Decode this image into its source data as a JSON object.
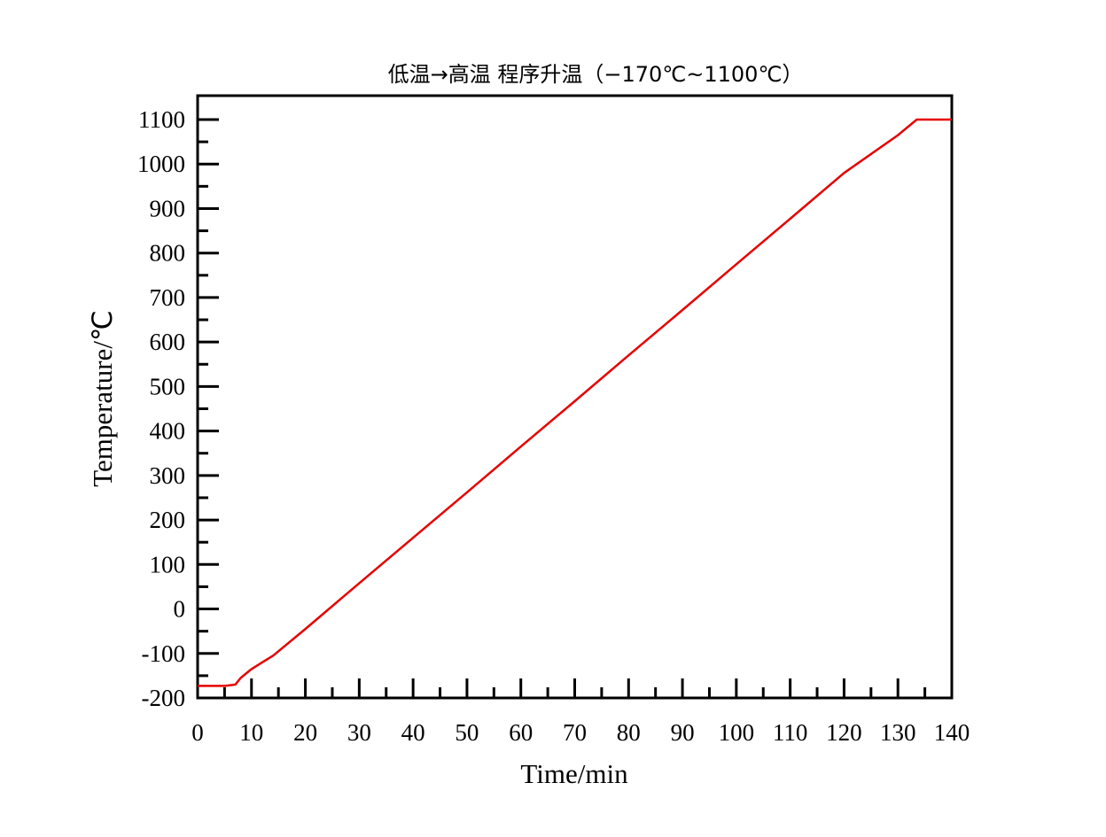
{
  "chart_data": {
    "type": "line",
    "title": "低温→高温 程序升温（−170℃~1100℃）",
    "xlabel": "Time/min",
    "ylabel": "Temperature/℃",
    "xlim": [
      0,
      140
    ],
    "ylim": [
      -200,
      1100
    ],
    "x_ticks": [
      0,
      10,
      20,
      30,
      40,
      50,
      60,
      70,
      80,
      90,
      100,
      110,
      120,
      130,
      140
    ],
    "y_ticks": [
      -200,
      -100,
      0,
      100,
      200,
      300,
      400,
      500,
      600,
      700,
      800,
      900,
      1000,
      1100
    ],
    "grid": false,
    "legend": null,
    "series": [
      {
        "name": "Temperature",
        "color": "#e60000",
        "x": [
          0,
          5,
          7,
          8,
          9,
          10,
          12,
          14,
          20,
          30,
          40,
          50,
          60,
          70,
          80,
          90,
          100,
          110,
          120,
          130,
          133.5,
          140
        ],
        "y": [
          -173,
          -173,
          -170,
          -155,
          -145,
          -135,
          -120,
          -105,
          -45,
          58,
          160,
          262,
          365,
          467,
          570,
          672,
          775,
          877,
          980,
          1065,
          1100,
          1100
        ]
      }
    ]
  }
}
